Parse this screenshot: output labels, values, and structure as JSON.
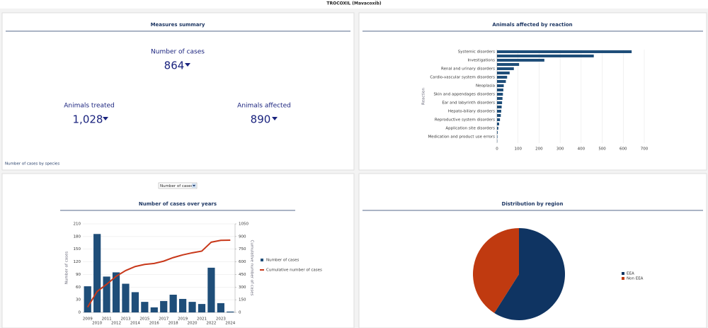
{
  "header": {
    "title": "TROCOXIL (Mavacoxib)"
  },
  "summary": {
    "title": "Measures summary",
    "kpis": [
      {
        "label": "Number of cases",
        "value": "864"
      },
      {
        "label": "Animals treated",
        "value": "1,028"
      },
      {
        "label": "Animals affected",
        "value": "890"
      }
    ],
    "link": "Number of cases by species"
  },
  "selector": {
    "selected": "Number of cases"
  },
  "chart_data": [
    {
      "type": "hbar",
      "title": "Animals affected by reaction",
      "y_label": "Reaction",
      "categories": [
        "Systemic disorders",
        null,
        "Investigations",
        null,
        "Renal and urinary disorders",
        null,
        "Cardio-vascular system disorders",
        null,
        "Neoplasia",
        null,
        "Skin and appendages disorders",
        null,
        "Ear and labyrinth disorders",
        null,
        "Hepato-biliary disorders",
        null,
        "Reproductive system disorders",
        null,
        "Application site disorders",
        null,
        "Medication and product use errors",
        null
      ],
      "values": [
        640,
        460,
        225,
        105,
        80,
        60,
        48,
        42,
        32,
        30,
        28,
        26,
        24,
        22,
        20,
        18,
        14,
        10,
        6,
        3,
        2,
        1
      ],
      "color": "#1f4e79",
      "xlim": [
        0,
        700
      ],
      "xticks": [
        0,
        100,
        200,
        300,
        400,
        500,
        600,
        700
      ],
      "grid": true
    },
    {
      "type": "combo",
      "title": "Number of cases over years",
      "y_label": "Number of cases",
      "y2_label": "Cumulative number of cases",
      "categories": [
        "2009",
        "2010",
        "2011",
        "2012",
        "2013",
        "2014",
        "2015",
        "2016",
        "2017",
        "2018",
        "2019",
        "2020",
        "2021",
        "2022",
        "2023",
        "2024"
      ],
      "series": [
        {
          "name": "Number of cases",
          "type": "bar",
          "color": "#1f4e79",
          "values": [
            62,
            186,
            85,
            95,
            68,
            48,
            25,
            12,
            27,
            42,
            32,
            25,
            20,
            106,
            22,
            2
          ]
        },
        {
          "name": "Cumulative number of cases",
          "type": "line",
          "axis": "y2",
          "color": "#c8381a",
          "values": [
            62,
            248,
            333,
            428,
            496,
            544,
            569,
            581,
            608,
            650,
            682,
            707,
            727,
            833,
            855,
            857
          ]
        }
      ],
      "ylim": [
        0,
        210
      ],
      "yticks": [
        0,
        30,
        60,
        90,
        120,
        150,
        180,
        210
      ],
      "y2lim": [
        0,
        1050
      ],
      "y2ticks": [
        0,
        150,
        300,
        450,
        600,
        750,
        900,
        1050
      ],
      "grid": true,
      "legend": "right"
    },
    {
      "type": "pie",
      "title": "Distribution by region",
      "categories": [
        "EEA",
        "Non EEA"
      ],
      "values": [
        59,
        41
      ],
      "colors": [
        "#0f3462",
        "#c03a10"
      ],
      "legend": "right"
    }
  ]
}
